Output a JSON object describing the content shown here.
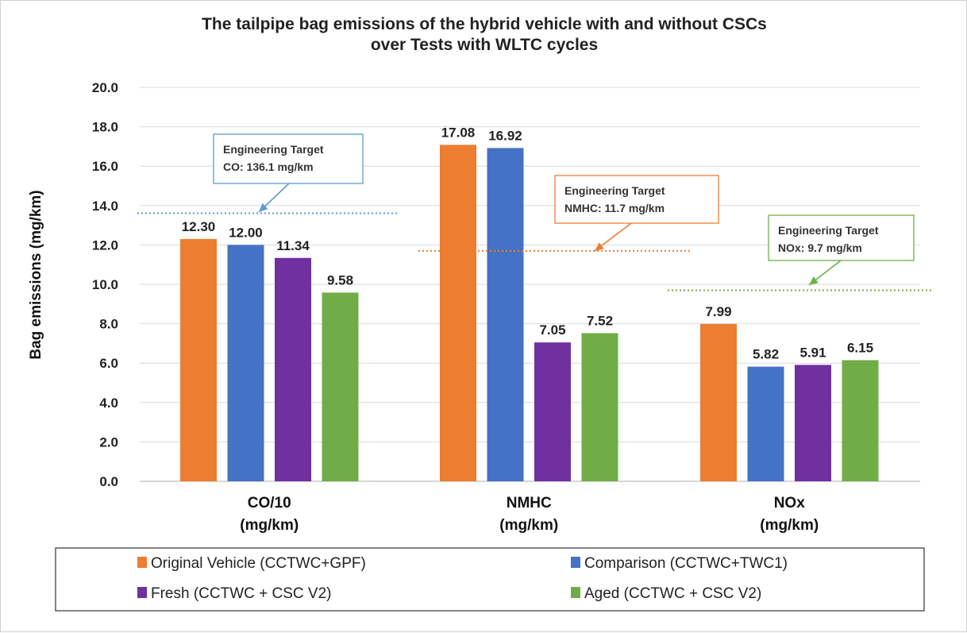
{
  "chart_data": {
    "type": "bar",
    "title": [
      "The tailpipe bag emissions of the hybrid vehicle with and without CSCs",
      "over Tests with  WLTC cycles"
    ],
    "ylabel": "Bag emissions  (mg/km)",
    "ylim": [
      0,
      20
    ],
    "yticks": [
      "0.0",
      "2.0",
      "4.0",
      "6.0",
      "8.0",
      "10.0",
      "12.0",
      "14.0",
      "16.0",
      "18.0",
      "20.0"
    ],
    "grid": true,
    "legend_position": "bottom",
    "categories": [
      [
        "CO/10",
        "(mg/km)"
      ],
      [
        "NMHC",
        "(mg/km)"
      ],
      [
        "NOx",
        "(mg/km)"
      ]
    ],
    "series": [
      {
        "name": "Original Vehicle (CCTWC+GPF)",
        "color": "#ed7d31",
        "values": [
          12.3,
          17.08,
          7.99
        ],
        "labels": [
          "12.30",
          "17.08",
          "7.99"
        ]
      },
      {
        "name": "Comparison (CCTWC+TWC1)",
        "color": "#4472c4",
        "values": [
          12.0,
          16.92,
          5.82
        ],
        "labels": [
          "12.00",
          "16.92",
          "5.82"
        ]
      },
      {
        "name": "Fresh (CCTWC + CSC V2)",
        "color": "#7030a0",
        "values": [
          11.34,
          7.05,
          5.91
        ],
        "labels": [
          "11.34",
          "7.05",
          "5.91"
        ]
      },
      {
        "name": "Aged (CCTWC + CSC V2)",
        "color": "#70ad47",
        "values": [
          9.58,
          7.52,
          6.15
        ],
        "labels": [
          "9.58",
          "7.52",
          "6.15"
        ]
      }
    ],
    "annotations": [
      {
        "category": 0,
        "lines": [
          "Engineering Target",
          "CO: 136.1 mg/km"
        ],
        "value": 13.61,
        "color": "#5b9bd5"
      },
      {
        "category": 1,
        "lines": [
          "Engineering Target",
          "NMHC: 11.7 mg/km"
        ],
        "value": 11.7,
        "color": "#ed7d31"
      },
      {
        "category": 2,
        "lines": [
          "Engineering Target",
          "NOx: 9.7 mg/km"
        ],
        "value": 9.7,
        "color": "#70ad47"
      }
    ]
  }
}
